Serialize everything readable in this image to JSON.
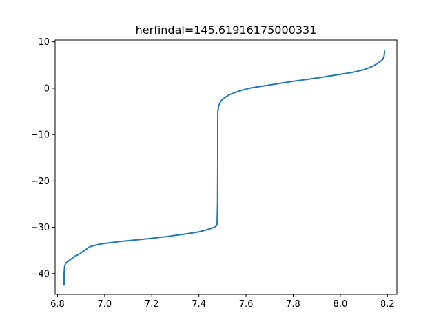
{
  "chart_data": {
    "type": "line",
    "title": "herfindal=145.61916175000331",
    "xlabel": "",
    "ylabel": "",
    "xlim": [
      6.79,
      8.24
    ],
    "ylim": [
      -44.5,
      10.4
    ],
    "grid": false,
    "legend": "none",
    "x_ticks": [
      6.8,
      7.0,
      7.2,
      7.4,
      7.6,
      7.8,
      8.0,
      8.2
    ],
    "x_tick_labels": [
      "6.8",
      "7.0",
      "7.2",
      "7.4",
      "7.6",
      "7.8",
      "8.0",
      "8.2"
    ],
    "y_ticks": [
      10,
      0,
      -10,
      -20,
      -30,
      -40
    ],
    "y_tick_labels": [
      "10",
      "0",
      "−10",
      "−20",
      "−30",
      "−40"
    ],
    "series": [
      {
        "color": "#1f77b4",
        "x": [
          6.828,
          6.828,
          6.83,
          6.836,
          6.848,
          6.86,
          6.87,
          6.875,
          6.885,
          6.898,
          6.908,
          6.918,
          6.928,
          6.938,
          6.958,
          6.985,
          7.015,
          7.06,
          7.12,
          7.2,
          7.28,
          7.35,
          7.4,
          7.43,
          7.455,
          7.47,
          7.477,
          7.479,
          7.48,
          7.48,
          7.48,
          7.481,
          7.483,
          7.488,
          7.496,
          7.51,
          7.53,
          7.555,
          7.585,
          7.615,
          7.65,
          7.7,
          7.8,
          7.9,
          8.0,
          8.05,
          8.1,
          8.14,
          8.165,
          8.18,
          8.186,
          8.188
        ],
        "y": [
          -42.5,
          -40.0,
          -38.5,
          -37.7,
          -37.2,
          -36.8,
          -36.4,
          -36.2,
          -36.0,
          -35.6,
          -35.2,
          -34.9,
          -34.5,
          -34.2,
          -33.9,
          -33.6,
          -33.4,
          -33.1,
          -32.8,
          -32.4,
          -31.9,
          -31.4,
          -31.0,
          -30.6,
          -30.2,
          -29.9,
          -29.5,
          -25.0,
          -15.0,
          -8.0,
          -5.5,
          -4.8,
          -4.0,
          -3.3,
          -2.6,
          -2.0,
          -1.4,
          -0.9,
          -0.4,
          0.0,
          0.3,
          0.7,
          1.5,
          2.2,
          3.0,
          3.4,
          4.0,
          4.8,
          5.6,
          6.2,
          7.0,
          8.0
        ]
      }
    ]
  }
}
